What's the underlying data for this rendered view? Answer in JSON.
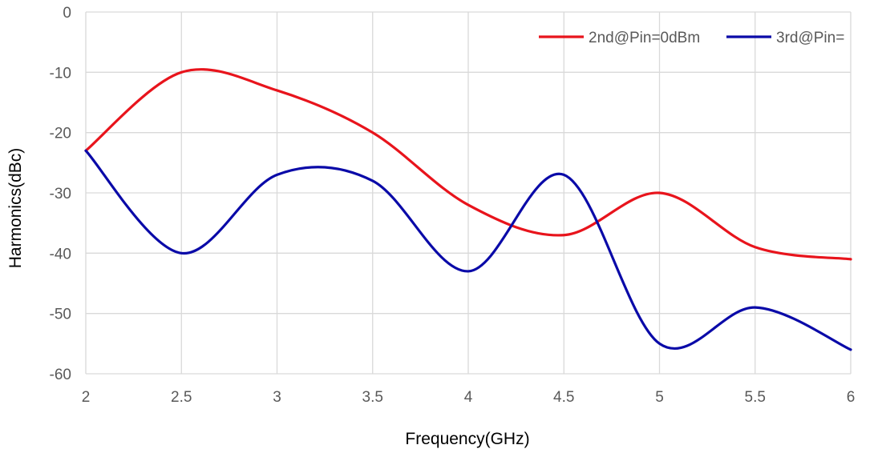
{
  "chart_data": {
    "type": "line",
    "xlabel": "Frequency(GHz)",
    "ylabel": "Harmonics(dBc)",
    "xlim": [
      2,
      6
    ],
    "ylim": [
      -60,
      0
    ],
    "x_ticks": [
      2,
      2.5,
      3,
      3.5,
      4,
      4.5,
      5,
      5.5,
      6
    ],
    "x_tick_labels": [
      "2",
      "2.5",
      "3",
      "3.5",
      "4",
      "4.5",
      "5",
      "5.5",
      "6"
    ],
    "y_ticks": [
      0,
      -10,
      -20,
      -30,
      -40,
      -50,
      -60
    ],
    "y_tick_labels": [
      "0",
      "-10",
      "-20",
      "-30",
      "-40",
      "-50",
      "-60"
    ],
    "grid": true,
    "legend_position": "top-right",
    "series": [
      {
        "name": "2nd@Pin=0dBm",
        "color": "#e8141c",
        "x": [
          2,
          2.5,
          3,
          3.5,
          4,
          4.5,
          5,
          5.5,
          6
        ],
        "y": [
          -23,
          -10,
          -13,
          -20,
          -32,
          -37,
          -30,
          -39,
          -41
        ]
      },
      {
        "name": "3rd@Pin=",
        "color": "#0a0aa8",
        "x": [
          2,
          2.5,
          3,
          3.5,
          4,
          4.5,
          5,
          5.5,
          6
        ],
        "y": [
          -23,
          -40,
          -27,
          -28,
          -43,
          -27,
          -55,
          -49,
          -56
        ]
      }
    ]
  }
}
